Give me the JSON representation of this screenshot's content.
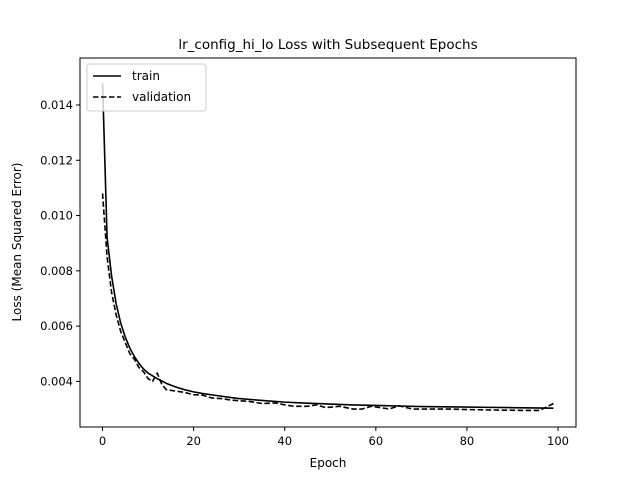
{
  "chart_data": {
    "type": "line",
    "title": "lr_config_hi_lo Loss with Subsequent Epochs",
    "xlabel": "Epoch",
    "ylabel": "Loss (Mean Squared Error)",
    "xlim": [
      -4.95,
      103.95
    ],
    "ylim": [
      0.00235,
      0.0157
    ],
    "xticks": [
      0,
      20,
      40,
      60,
      80,
      100
    ],
    "yticks": [
      0.004,
      0.006,
      0.008,
      0.01,
      0.012,
      0.014
    ],
    "ytick_labels": [
      "0.004",
      "0.006",
      "0.008",
      "0.010",
      "0.012",
      "0.014"
    ],
    "grid": false,
    "legend": {
      "placement": "top-left",
      "entries": [
        "train",
        "validation"
      ]
    },
    "series": [
      {
        "name": "train",
        "style": "solid",
        "color": "#000000",
        "x": [
          0,
          1,
          2,
          3,
          4,
          5,
          6,
          7,
          8,
          9,
          10,
          12,
          14,
          16,
          18,
          20,
          22,
          25,
          28,
          30,
          35,
          40,
          45,
          50,
          55,
          60,
          65,
          70,
          75,
          80,
          85,
          90,
          95,
          99
        ],
        "y": [
          0.0148,
          0.0092,
          0.0078,
          0.0068,
          0.0061,
          0.0056,
          0.0052,
          0.0049,
          0.00465,
          0.00445,
          0.0043,
          0.0041,
          0.00393,
          0.0038,
          0.0037,
          0.00362,
          0.00356,
          0.00349,
          0.00342,
          0.00338,
          0.00331,
          0.00325,
          0.00321,
          0.00318,
          0.00315,
          0.00313,
          0.00311,
          0.00309,
          0.00308,
          0.00307,
          0.00306,
          0.00305,
          0.00304,
          0.00303
        ]
      },
      {
        "name": "validation",
        "style": "dashed",
        "color": "#000000",
        "x": [
          0,
          1,
          2,
          3,
          4,
          5,
          6,
          7,
          8,
          9,
          10,
          11,
          12,
          13,
          14,
          16,
          18,
          20,
          22,
          24,
          26,
          28,
          30,
          32,
          35,
          38,
          40,
          42,
          45,
          47,
          49,
          52,
          55,
          57,
          59,
          61,
          63,
          65,
          68,
          72,
          76,
          80,
          84,
          88,
          92,
          96,
          99
        ],
        "y": [
          0.0108,
          0.0085,
          0.0072,
          0.0064,
          0.0058,
          0.0054,
          0.005,
          0.0048,
          0.0045,
          0.00435,
          0.0041,
          0.004,
          0.0043,
          0.0039,
          0.0037,
          0.00365,
          0.0036,
          0.00352,
          0.0035,
          0.0034,
          0.00338,
          0.00333,
          0.0033,
          0.00328,
          0.0032,
          0.00322,
          0.00315,
          0.0031,
          0.0031,
          0.00315,
          0.00305,
          0.0031,
          0.003,
          0.003,
          0.0031,
          0.00305,
          0.003,
          0.00312,
          0.003,
          0.003,
          0.003,
          0.00298,
          0.00297,
          0.00296,
          0.00295,
          0.00295,
          0.0032
        ]
      }
    ]
  }
}
